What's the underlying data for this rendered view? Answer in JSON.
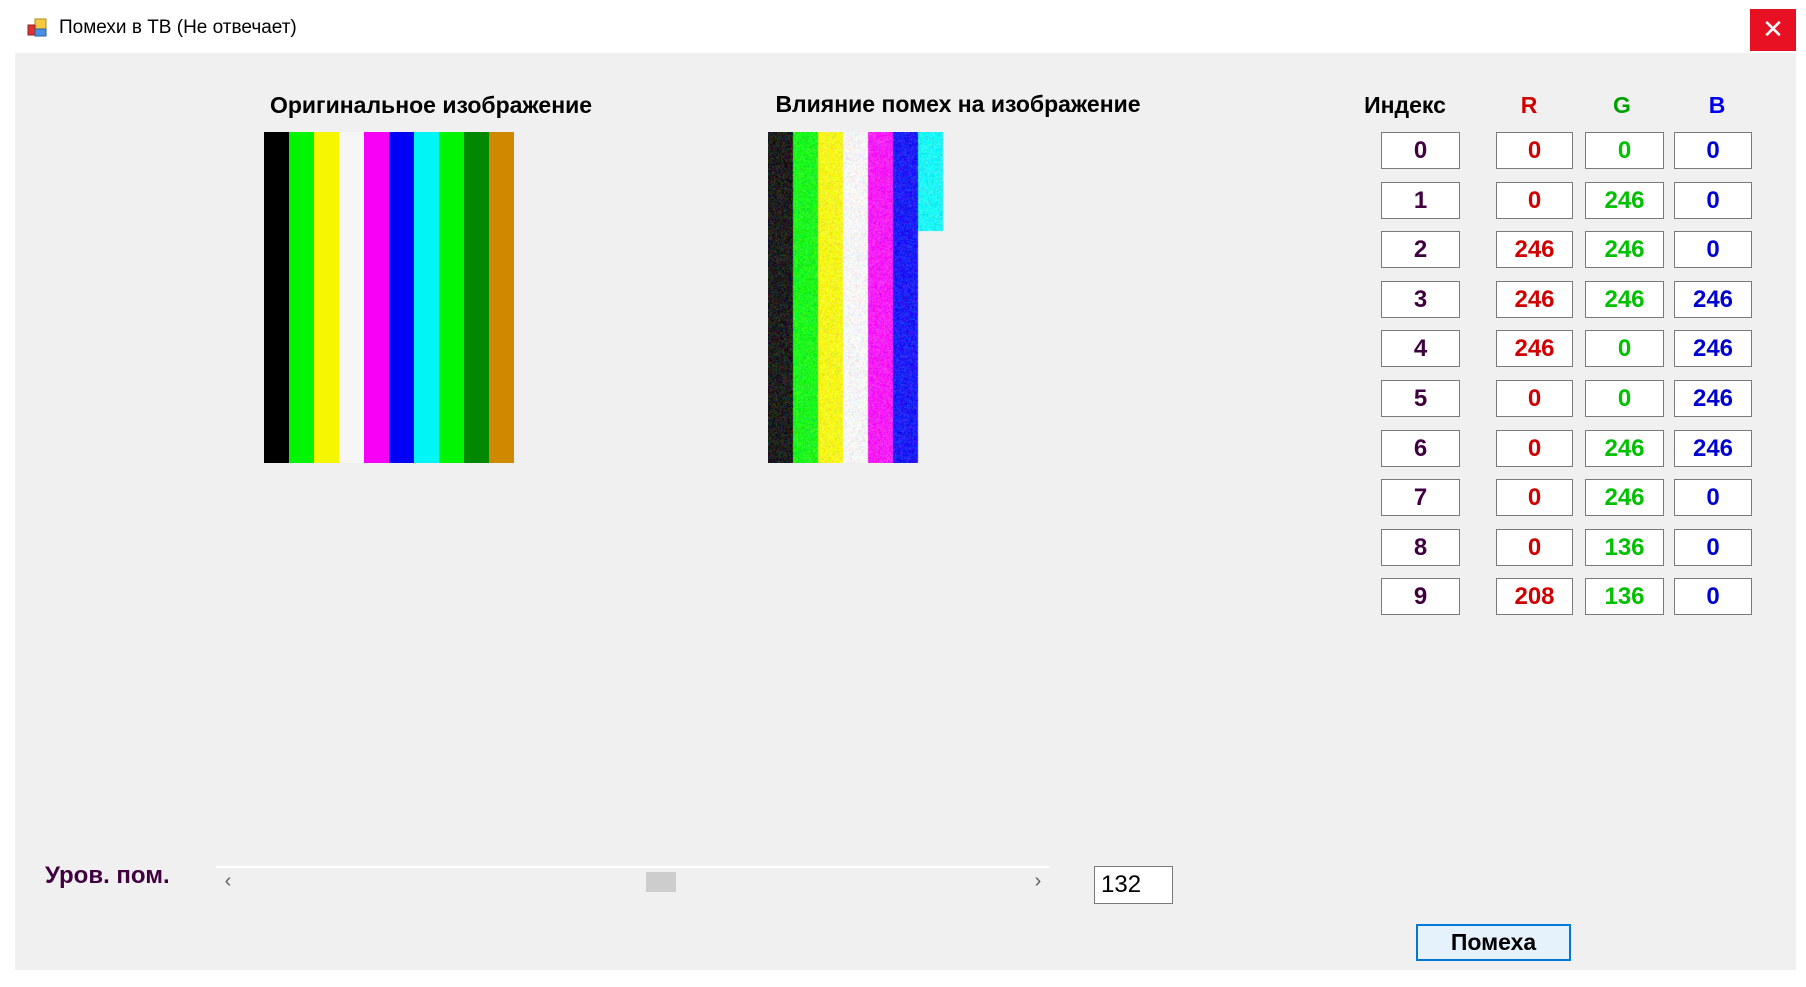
{
  "window": {
    "title": "Помехи в ТВ (Не отвечает)",
    "close_icon": "close-icon",
    "close_label": "✕"
  },
  "headings": {
    "original": "Оригинальное изображение",
    "noisy": "Влияние помех на изображение"
  },
  "table": {
    "headers": {
      "index": "Индекс",
      "r": "R",
      "g": "G",
      "b": "B"
    },
    "colors": {
      "index": "#400040",
      "r": "#d00000",
      "g": "#00c000",
      "b": "#0000d0"
    },
    "rows": [
      {
        "index": "0",
        "r": "0",
        "g": "0",
        "b": "0"
      },
      {
        "index": "1",
        "r": "0",
        "g": "246",
        "b": "0"
      },
      {
        "index": "2",
        "r": "246",
        "g": "246",
        "b": "0"
      },
      {
        "index": "3",
        "r": "246",
        "g": "246",
        "b": "246"
      },
      {
        "index": "4",
        "r": "246",
        "g": "0",
        "b": "246"
      },
      {
        "index": "5",
        "r": "0",
        "g": "0",
        "b": "246"
      },
      {
        "index": "6",
        "r": "0",
        "g": "246",
        "b": "246"
      },
      {
        "index": "7",
        "r": "0",
        "g": "246",
        "b": "0"
      },
      {
        "index": "8",
        "r": "0",
        "g": "136",
        "b": "0"
      },
      {
        "index": "9",
        "r": "208",
        "g": "136",
        "b": "0"
      }
    ]
  },
  "noise_progress": {
    "completed_stripes": 6,
    "partial_stripe_fraction": 0.3
  },
  "controls": {
    "noise_level_label": "Уров. пом.",
    "scroll_left": "‹",
    "scroll_right": "›",
    "noise_level_value": "132",
    "noise_button": "Помеха"
  }
}
